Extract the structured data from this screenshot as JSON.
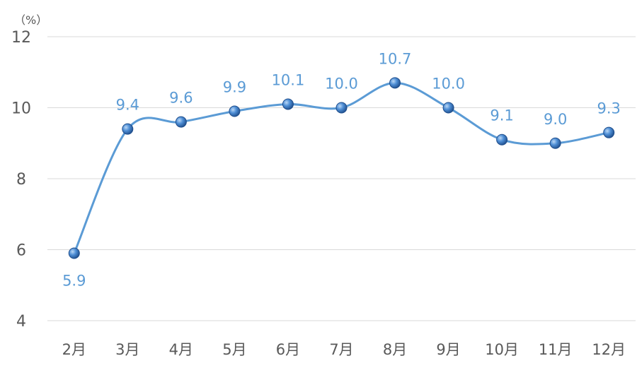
{
  "chart_data": {
    "type": "line",
    "title": "",
    "xlabel": "",
    "ylabel": "",
    "unit_label": "（%）",
    "categories": [
      "2月",
      "3月",
      "4月",
      "5月",
      "6月",
      "7月",
      "8月",
      "9月",
      "10月",
      "11月",
      "12月"
    ],
    "series": [
      {
        "values": [
          5.9,
          9.4,
          9.6,
          9.9,
          10.1,
          10.0,
          10.7,
          10.0,
          9.1,
          9.0,
          9.3
        ],
        "data_labels": [
          "5.9",
          "9.4",
          "9.6",
          "9.9",
          "10.1",
          "10.0",
          "10.7",
          "10.0",
          "9.1",
          "9.0",
          "9.3"
        ]
      }
    ],
    "ylim": [
      4,
      12
    ],
    "yticks": [
      4,
      6,
      8,
      10,
      12
    ],
    "smooth": true,
    "grid": true,
    "legend": "none",
    "colors": {
      "line": "#5b9bd5",
      "marker": "#2e6db3",
      "marker_highlight": "#bcd8f5",
      "label": "#5b9bd5",
      "tick": "#595959",
      "grid": "#d9d9d9"
    }
  }
}
